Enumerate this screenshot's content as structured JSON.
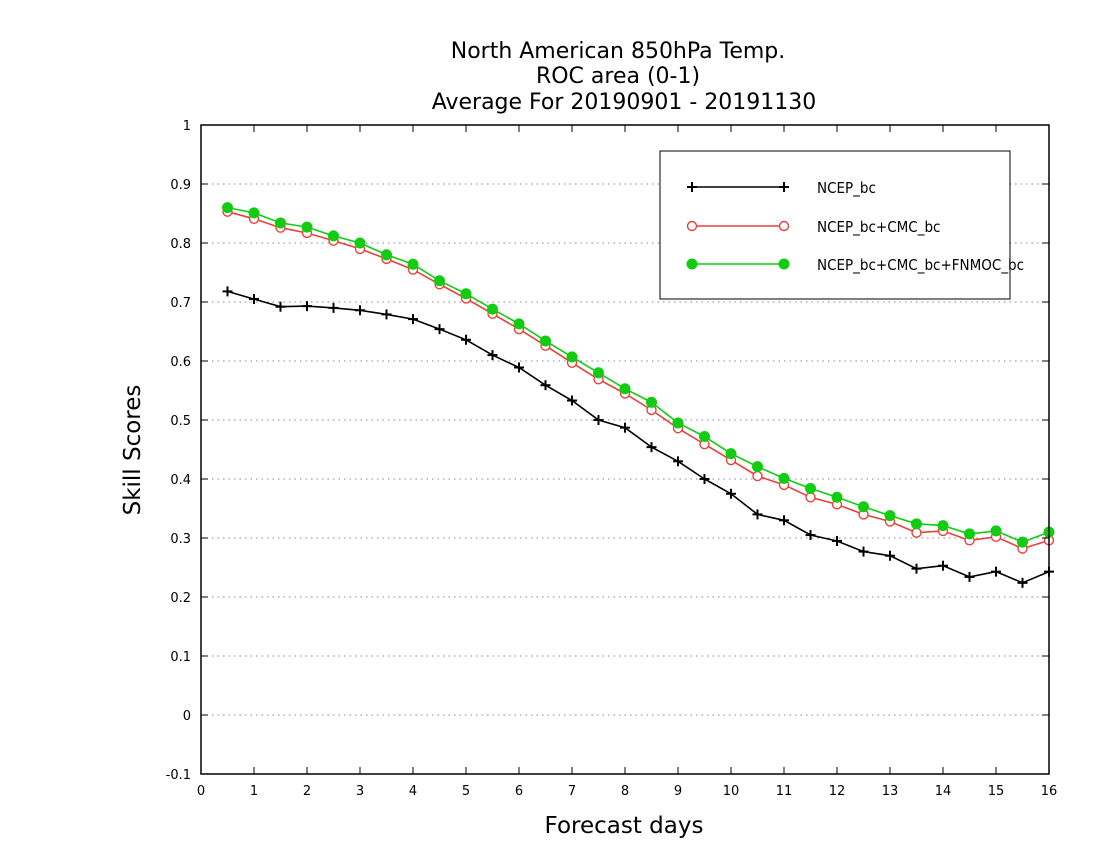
{
  "chart_data": {
    "type": "line",
    "title_lines": [
      "North American 850hPa Temp.",
      "ROC area (0-1)",
      "Average For 20190901 - 20191130"
    ],
    "xlabel": "Forecast days",
    "ylabel": "Skill Scores",
    "xlim": [
      0,
      16
    ],
    "ylim": [
      -0.1,
      1
    ],
    "x_ticks": [
      "0",
      "1",
      "2",
      "3",
      "4",
      "5",
      "6",
      "7",
      "8",
      "9",
      "10",
      "11",
      "12",
      "13",
      "14",
      "15",
      "16"
    ],
    "y_ticks": [
      "-0.1",
      "0",
      "0.1",
      "0.2",
      "0.3",
      "0.4",
      "0.5",
      "0.6",
      "0.7",
      "0.8",
      "0.9",
      "1"
    ],
    "grid": "horizontal dotted",
    "legend_position": "top-right",
    "x": [
      0.5,
      1,
      1.5,
      2,
      2.5,
      3,
      3.5,
      4,
      4.5,
      5,
      5.5,
      6,
      6.5,
      7,
      7.5,
      8,
      8.5,
      9,
      9.5,
      10,
      10.5,
      11,
      11.5,
      12,
      12.5,
      13,
      13.5,
      14,
      14.5,
      15,
      15.5,
      16
    ],
    "series": [
      {
        "name": "NCEP_bc",
        "color": "#000000",
        "marker": "plus",
        "values": [
          0.718,
          0.705,
          0.692,
          0.693,
          0.69,
          0.686,
          0.679,
          0.671,
          0.654,
          0.636,
          0.61,
          0.589,
          0.559,
          0.533,
          0.5,
          0.487,
          0.454,
          0.43,
          0.4,
          0.375,
          0.34,
          0.33,
          0.305,
          0.295,
          0.277,
          0.27,
          0.248,
          0.253,
          0.234,
          0.243,
          0.224,
          0.243
        ]
      },
      {
        "name": "NCEP_bc+CMC_bc",
        "color": "#e8413d",
        "marker": "open-circle",
        "values": [
          0.853,
          0.841,
          0.826,
          0.817,
          0.804,
          0.79,
          0.773,
          0.755,
          0.73,
          0.706,
          0.68,
          0.654,
          0.626,
          0.597,
          0.569,
          0.545,
          0.517,
          0.486,
          0.459,
          0.432,
          0.405,
          0.39,
          0.369,
          0.357,
          0.34,
          0.328,
          0.309,
          0.312,
          0.296,
          0.302,
          0.282,
          0.296
        ]
      },
      {
        "name": "NCEP_bc+CMC_bc+FNMOC_bc",
        "color": "#11cc11",
        "marker": "filled-circle",
        "values": [
          0.86,
          0.851,
          0.834,
          0.827,
          0.812,
          0.8,
          0.78,
          0.764,
          0.736,
          0.714,
          0.688,
          0.663,
          0.634,
          0.607,
          0.58,
          0.553,
          0.53,
          0.495,
          0.472,
          0.443,
          0.421,
          0.401,
          0.384,
          0.369,
          0.353,
          0.338,
          0.324,
          0.321,
          0.307,
          0.312,
          0.293,
          0.31
        ]
      }
    ]
  }
}
